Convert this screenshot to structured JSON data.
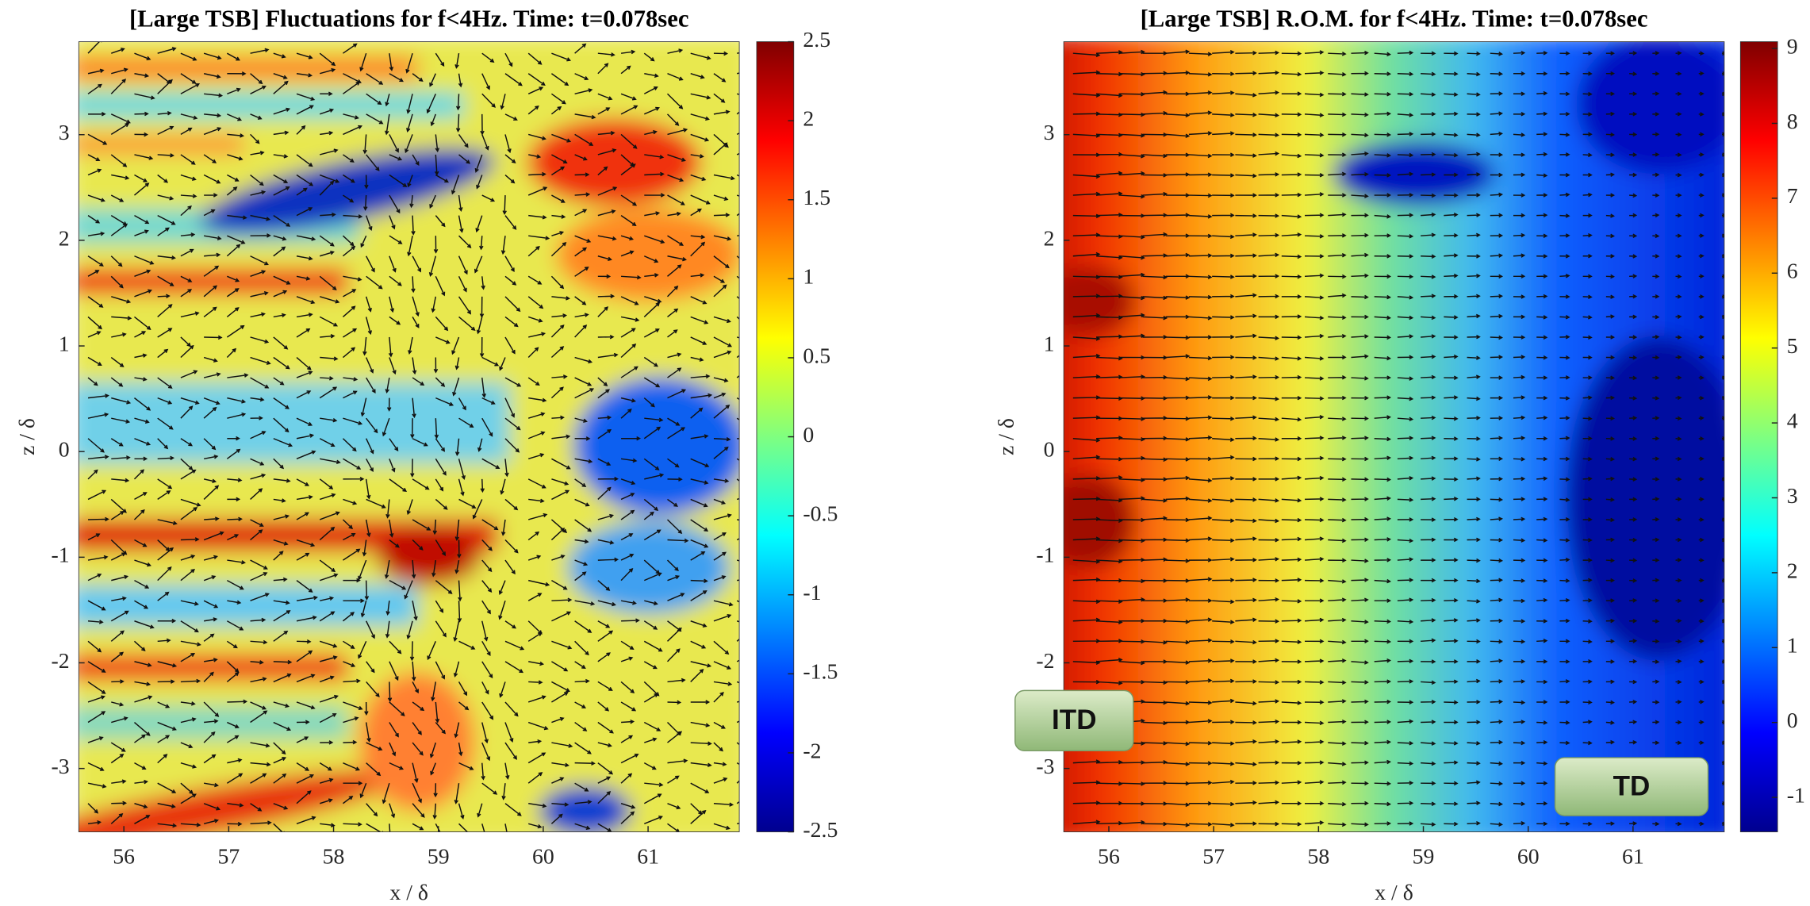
{
  "chart_data": [
    {
      "type": "heatmap",
      "title": "[Large TSB] Fluctuations for f<4Hz. Time: t=0.078sec",
      "xlabel": "x / δ",
      "ylabel": "z / δ",
      "xlim": [
        55.57,
        61.87
      ],
      "xticks": [
        56,
        57,
        58,
        59,
        60,
        61
      ],
      "ylim": [
        -3.6,
        3.88
      ],
      "yticks": [
        -3,
        -2,
        -1,
        0,
        1,
        2,
        3
      ],
      "clim": [
        -2.5,
        2.5
      ],
      "cticks": [
        -2.5,
        -2,
        -1.5,
        -1,
        -0.5,
        0,
        0.5,
        1,
        1.5,
        2,
        2.5
      ],
      "colormap": "jet"
    },
    {
      "type": "heatmap",
      "title": "[Large TSB] R.O.M. for f<4Hz. Time: t=0.078sec",
      "xlabel": "x / δ",
      "ylabel": "z / δ",
      "xlim": [
        55.57,
        61.87
      ],
      "xticks": [
        56,
        57,
        58,
        59,
        60,
        61
      ],
      "ylim": [
        -3.6,
        3.88
      ],
      "yticks": [
        -3,
        -2,
        -1,
        0,
        1,
        2,
        3
      ],
      "clim": [
        -1.46,
        9.09
      ],
      "cticks": [
        -1,
        0,
        1,
        2,
        3,
        4,
        5,
        6,
        7,
        8,
        9
      ],
      "colormap": "jet",
      "annotations": [
        "ITD",
        "TD"
      ]
    }
  ]
}
